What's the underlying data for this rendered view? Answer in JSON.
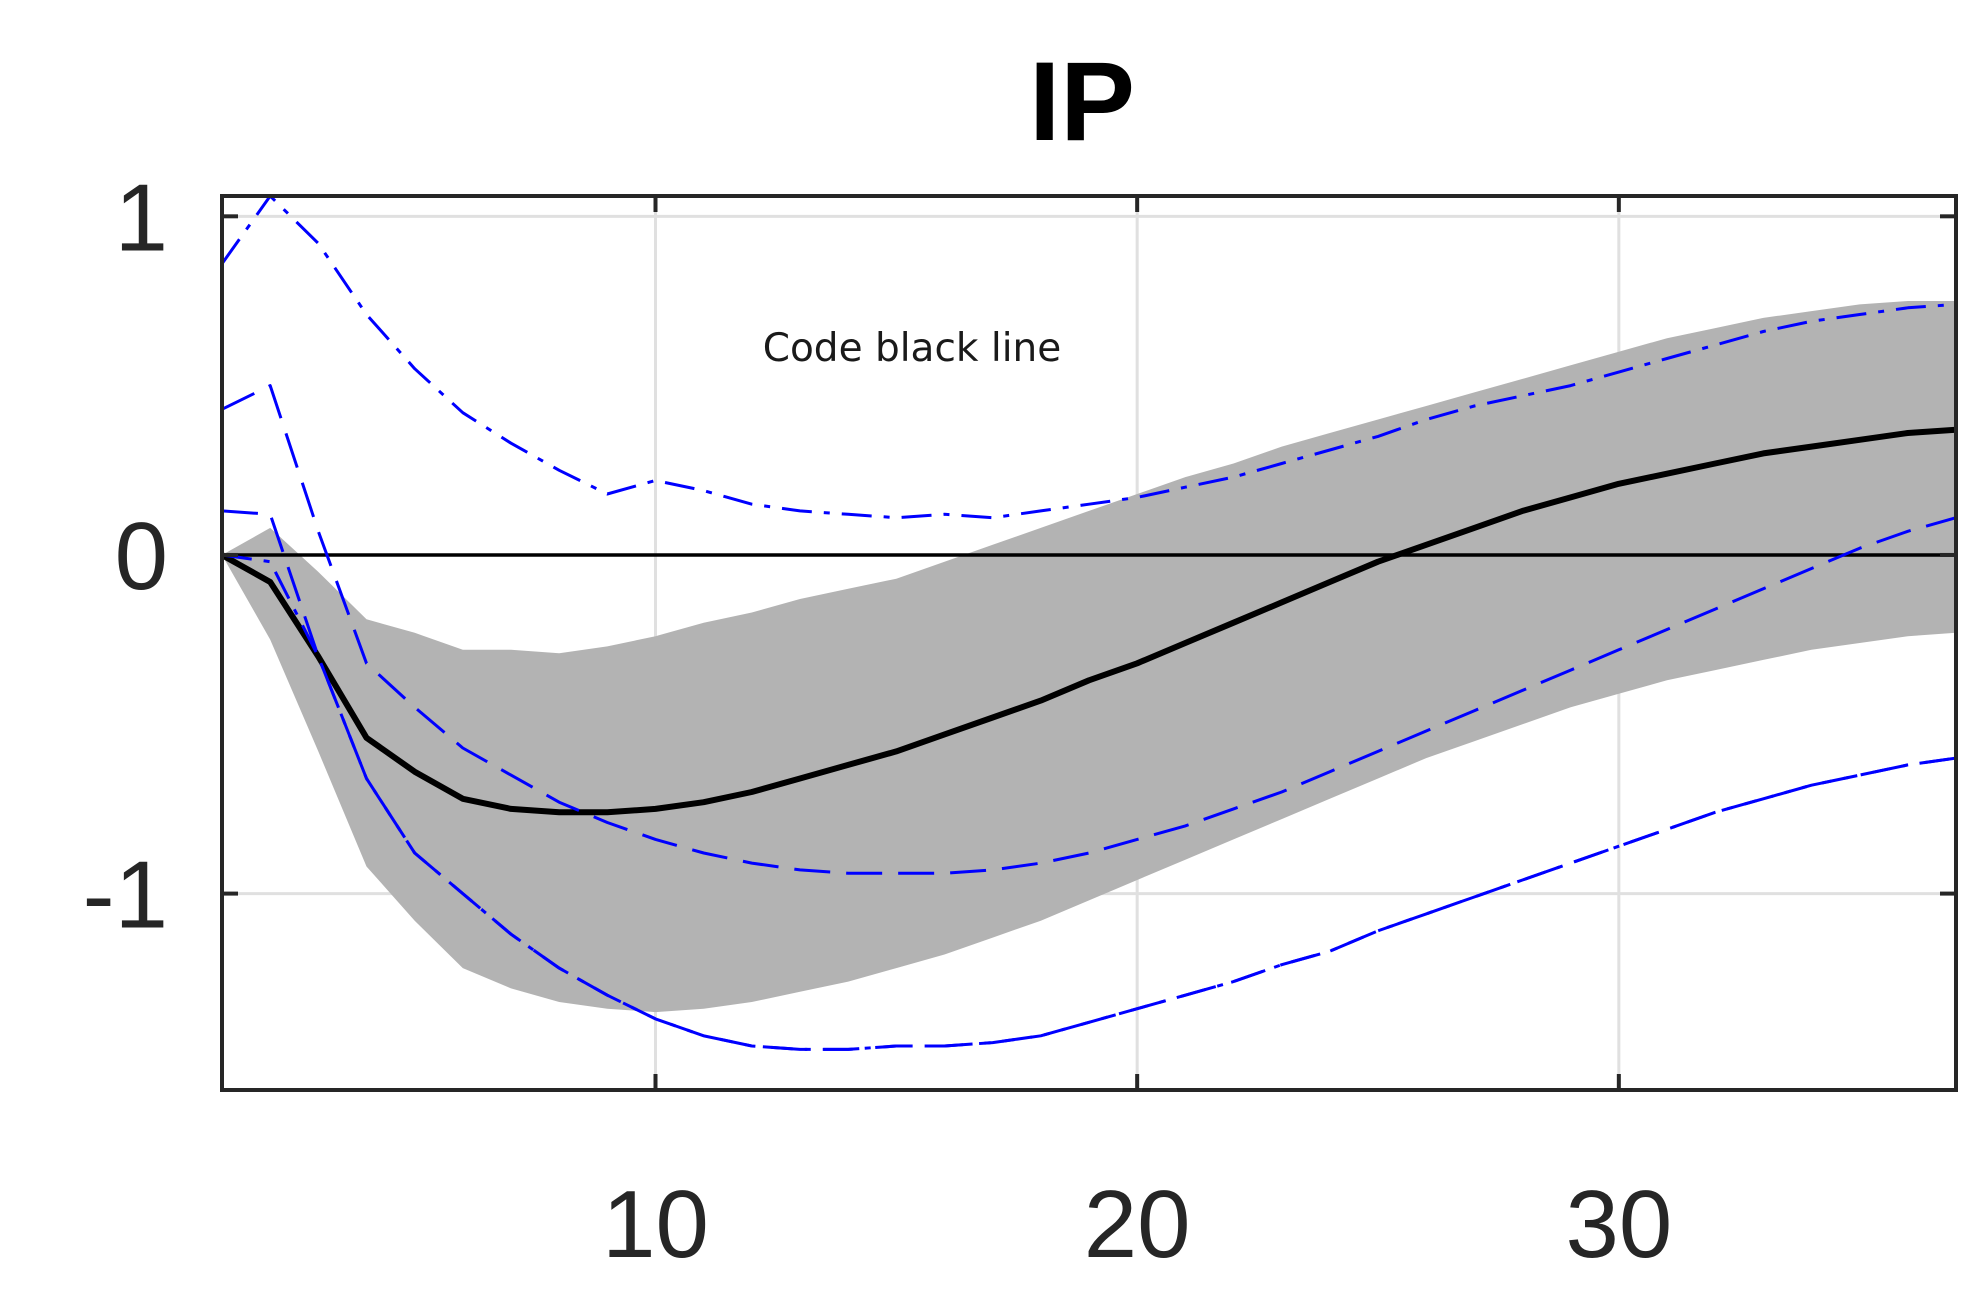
{
  "chart_data": {
    "type": "line",
    "title": "IP",
    "xlabel": "",
    "ylabel": "",
    "xlim": [
      1,
      37
    ],
    "ylim": [
      -1.58,
      1.06
    ],
    "x_ticks": [
      10,
      20,
      30
    ],
    "x_tick_labels": [
      "10",
      "20",
      "30"
    ],
    "y_ticks": [
      -1,
      0,
      1
    ],
    "y_tick_labels": [
      "-1",
      "0",
      "1"
    ],
    "grid": true,
    "annotation": "Code black line",
    "colors": {
      "band": "#b3b3b3",
      "main_line": "#000000",
      "blue_lines": "#0000ff",
      "zero_line": "#000000",
      "grid": "#e0e0e0",
      "axes": "#262626"
    },
    "band": {
      "x": [
        1,
        2,
        3,
        4,
        5,
        6,
        7,
        8,
        9,
        10,
        11,
        12,
        13,
        14,
        15,
        16,
        17,
        18,
        19,
        20,
        21,
        22,
        23,
        24,
        25,
        26,
        27,
        28,
        29,
        30,
        31,
        32,
        33,
        34,
        35,
        36,
        37
      ],
      "upper": [
        0,
        0.08,
        -0.05,
        -0.19,
        -0.23,
        -0.28,
        -0.28,
        -0.29,
        -0.27,
        -0.24,
        -0.2,
        -0.17,
        -0.13,
        -0.1,
        -0.07,
        -0.02,
        0.03,
        0.08,
        0.13,
        0.18,
        0.23,
        0.27,
        0.32,
        0.36,
        0.4,
        0.44,
        0.48,
        0.52,
        0.56,
        0.6,
        0.64,
        0.67,
        0.7,
        0.72,
        0.74,
        0.75,
        0.75
      ],
      "lower": [
        0,
        -0.25,
        -0.58,
        -0.92,
        -1.08,
        -1.22,
        -1.28,
        -1.32,
        -1.34,
        -1.35,
        -1.34,
        -1.32,
        -1.29,
        -1.26,
        -1.22,
        -1.18,
        -1.13,
        -1.08,
        -1.02,
        -0.96,
        -0.9,
        -0.84,
        -0.78,
        -0.72,
        -0.66,
        -0.6,
        -0.55,
        -0.5,
        -0.45,
        -0.41,
        -0.37,
        -0.34,
        -0.31,
        -0.28,
        -0.26,
        -0.24,
        -0.23
      ]
    },
    "series": [
      {
        "style": "solid",
        "x": [
          1,
          2,
          3,
          4,
          5,
          6,
          7,
          8,
          9,
          10,
          11,
          12,
          13,
          14,
          15,
          16,
          17,
          18,
          19,
          20,
          21,
          22,
          23,
          24,
          25,
          26,
          27,
          28,
          29,
          30,
          31,
          32,
          33,
          34,
          35,
          36,
          37
        ],
        "values": [
          0,
          -0.08,
          -0.3,
          -0.54,
          -0.64,
          -0.72,
          -0.75,
          -0.76,
          -0.76,
          -0.75,
          -0.73,
          -0.7,
          -0.66,
          -0.62,
          -0.58,
          -0.53,
          -0.48,
          -0.43,
          -0.37,
          -0.32,
          -0.26,
          -0.2,
          -0.14,
          -0.08,
          -0.02,
          0.03,
          0.08,
          0.13,
          0.17,
          0.21,
          0.24,
          0.27,
          0.3,
          0.32,
          0.34,
          0.36,
          0.37
        ]
      },
      {
        "style": "dashed",
        "x": [
          1,
          2,
          3,
          4,
          5,
          6,
          7,
          8,
          9,
          10,
          11,
          12,
          13,
          14,
          15,
          16,
          17,
          18,
          19,
          20,
          21,
          22,
          23,
          24,
          25,
          26,
          27,
          28,
          29,
          30,
          31,
          32,
          33,
          34,
          35,
          36,
          37
        ],
        "values": [
          0.43,
          0.5,
          0.07,
          -0.32,
          -0.45,
          -0.57,
          -0.65,
          -0.73,
          -0.79,
          -0.84,
          -0.88,
          -0.91,
          -0.93,
          -0.94,
          -0.94,
          -0.94,
          -0.93,
          -0.91,
          -0.88,
          -0.84,
          -0.8,
          -0.75,
          -0.7,
          -0.64,
          -0.58,
          -0.52,
          -0.46,
          -0.4,
          -0.34,
          -0.28,
          -0.22,
          -0.16,
          -0.1,
          -0.04,
          0.02,
          0.07,
          0.11
        ]
      },
      {
        "style": "dashed",
        "x": [
          1,
          2,
          3,
          4,
          5,
          6,
          7,
          8,
          9,
          10,
          11,
          12,
          13,
          14,
          15,
          16,
          17,
          18,
          19,
          20,
          21,
          22,
          23,
          24,
          25,
          26,
          27,
          28,
          29,
          30,
          31,
          32,
          33,
          34,
          35,
          36,
          37
        ],
        "values": [
          0.13,
          0.12,
          -0.3,
          -0.66,
          -0.88,
          -1.0,
          -1.12,
          -1.22,
          -1.3,
          -1.37,
          -1.42,
          -1.45,
          -1.46,
          -1.46,
          -1.45,
          -1.45,
          -1.44,
          -1.42,
          -1.38,
          -1.34,
          -1.3,
          -1.26,
          -1.21,
          -1.17,
          -1.11,
          -1.06,
          -1.01,
          -0.96,
          -0.91,
          -0.86,
          -0.81,
          -0.76,
          -0.72,
          -0.68,
          -0.65,
          -0.62,
          -0.6
        ]
      },
      {
        "style": "dashdot",
        "x": [
          1,
          2,
          3,
          4,
          5,
          6,
          7,
          8,
          9,
          10,
          11,
          12,
          13,
          14,
          15,
          16,
          17,
          18,
          19,
          20,
          21,
          22,
          23,
          24,
          25,
          26,
          27,
          28,
          29,
          30,
          31,
          32,
          33,
          34,
          35,
          36,
          37
        ],
        "values": [
          0.86,
          1.06,
          0.92,
          0.71,
          0.55,
          0.42,
          0.33,
          0.25,
          0.18,
          0.22,
          0.19,
          0.15,
          0.13,
          0.12,
          0.11,
          0.12,
          0.11,
          0.13,
          0.15,
          0.17,
          0.2,
          0.23,
          0.27,
          0.31,
          0.35,
          0.4,
          0.44,
          0.47,
          0.5,
          0.54,
          0.58,
          0.62,
          0.66,
          0.69,
          0.71,
          0.73,
          0.74
        ]
      },
      {
        "style": "dashdot",
        "x": [
          1,
          2,
          3,
          4,
          5,
          6,
          7,
          8,
          9,
          10,
          11,
          12,
          13,
          14,
          15,
          16,
          17,
          18,
          19,
          20,
          21,
          22,
          23,
          24,
          25,
          26,
          27,
          28,
          29,
          30,
          31,
          32,
          33,
          34,
          35,
          36,
          37
        ],
        "values": [
          0,
          -0.02,
          -0.3,
          -0.66,
          -0.88,
          -1.0,
          -1.12,
          -1.22,
          -1.3,
          -1.37,
          -1.42,
          -1.45,
          -1.46,
          -1.46,
          -1.45,
          -1.45,
          -1.44,
          -1.42,
          -1.38,
          -1.34,
          -1.3,
          -1.26,
          -1.21,
          -1.17,
          -1.11,
          -1.06,
          -1.01,
          -0.96,
          -0.91,
          -0.86,
          -0.81,
          -0.76,
          -0.72,
          -0.68,
          -0.65,
          -0.62,
          -0.6
        ]
      }
    ]
  }
}
